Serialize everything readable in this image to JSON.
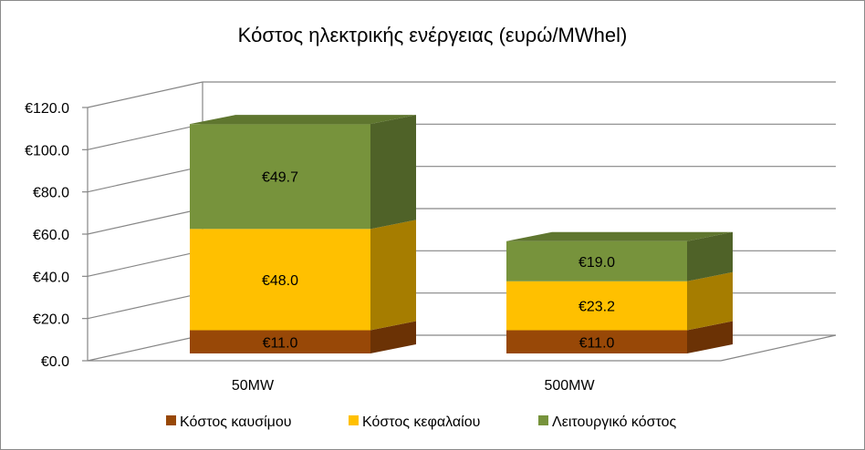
{
  "chart_data": {
    "type": "bar",
    "stacked": true,
    "three_d": true,
    "title": "Κόστος ηλεκτρικής ενέργειας (ευρώ/MWhel)",
    "categories": [
      "50MW",
      "500MW"
    ],
    "series": [
      {
        "name": "Κόστος καυσίμου",
        "values": [
          11.0,
          11.0
        ],
        "labels": [
          "€11.0",
          "€11.0"
        ],
        "color": "#984807",
        "side_color": "#6b3205",
        "top_color": "#7a3a06"
      },
      {
        "name": "Κόστος κεφαλαίου",
        "values": [
          48.0,
          23.2
        ],
        "labels": [
          "€48.0",
          "€23.2"
        ],
        "color": "#ffc000",
        "side_color": "#a67d00",
        "top_color": "#d9a300"
      },
      {
        "name": "Λειτουργικό κόστος",
        "values": [
          49.7,
          19.0
        ],
        "labels": [
          "€49.7",
          "€19.0"
        ],
        "color": "#77933c",
        "side_color": "#4f6228",
        "top_color": "#5f762f"
      }
    ],
    "y_ticks": [
      {
        "value": 0,
        "label": "€0.0"
      },
      {
        "value": 20,
        "label": "€20.0"
      },
      {
        "value": 40,
        "label": "€40.0"
      },
      {
        "value": 60,
        "label": "€60.0"
      },
      {
        "value": 80,
        "label": "€80.0"
      },
      {
        "value": 100,
        "label": "€100.0"
      },
      {
        "value": 120,
        "label": "€120.0"
      }
    ],
    "ylim": [
      0,
      120
    ],
    "grid": true,
    "legend_position": "bottom",
    "colors": {
      "gridline": "#868686",
      "wall_line": "#868686",
      "text": "#000000"
    }
  }
}
